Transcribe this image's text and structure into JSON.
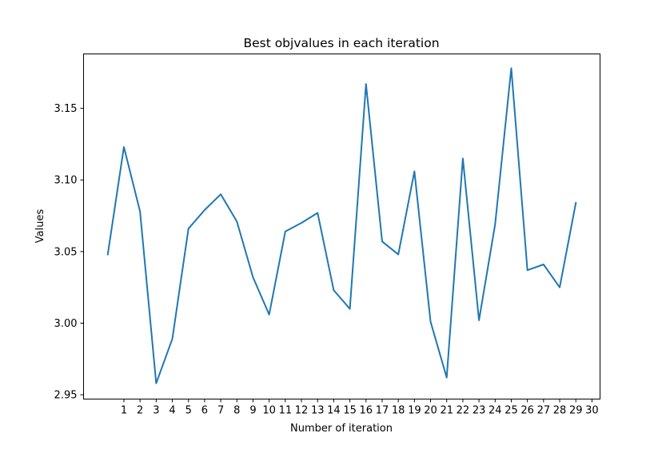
{
  "chart_data": {
    "type": "line",
    "title": "Best objvalues in each iteration",
    "xlabel": "Number of iteration",
    "ylabel": "Values",
    "xlim": [
      -1.5,
      30.5
    ],
    "ylim": [
      2.947,
      3.188
    ],
    "xticks": [
      "1",
      "2",
      "3",
      "4",
      "5",
      "6",
      "7",
      "8",
      "9",
      "10",
      "11",
      "12",
      "13",
      "14",
      "15",
      "16",
      "17",
      "18",
      "19",
      "20",
      "21",
      "22",
      "23",
      "24",
      "25",
      "26",
      "27",
      "28",
      "29",
      "30"
    ],
    "yticks": [
      "2.95",
      "3.00",
      "3.05",
      "3.10",
      "3.15"
    ],
    "grid": false,
    "series": [
      {
        "color": "#1f77b4",
        "x": [
          0,
          1,
          2,
          3,
          4,
          5,
          6,
          7,
          8,
          9,
          10,
          11,
          12,
          13,
          14,
          15,
          16,
          17,
          18,
          19,
          20,
          21,
          22,
          23,
          24,
          25,
          26,
          27,
          28,
          29
        ],
        "values": [
          3.048,
          3.123,
          3.078,
          2.958,
          2.989,
          3.066,
          3.079,
          3.09,
          3.071,
          3.032,
          3.006,
          3.064,
          3.07,
          3.077,
          3.023,
          3.01,
          3.167,
          3.057,
          3.048,
          3.106,
          3.001,
          2.962,
          3.115,
          3.002,
          3.069,
          3.178,
          3.037,
          3.041,
          3.025,
          3.084
        ]
      }
    ]
  }
}
